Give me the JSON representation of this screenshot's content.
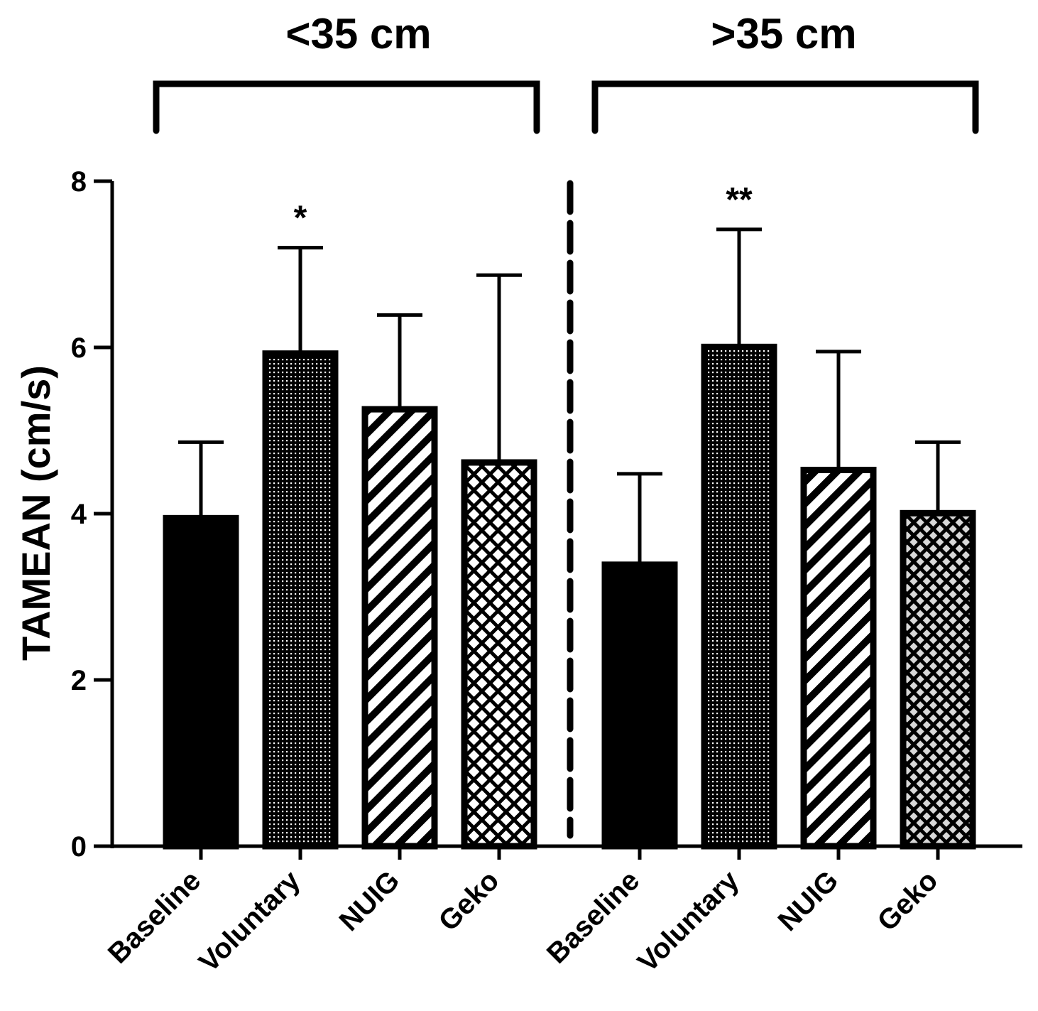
{
  "chart_data": {
    "type": "bar",
    "ylabel": "TAMEAN (cm/s)",
    "xlabel": "",
    "ylim": [
      0,
      8
    ],
    "yticks": [
      "0",
      "2",
      "4",
      "6",
      "8"
    ],
    "groups": [
      {
        "label": "<35 cm",
        "bars": [
          {
            "category": "Baseline",
            "value": 3.98,
            "error": 0.88,
            "pattern": "solid",
            "annotation": ""
          },
          {
            "category": "Voluntary",
            "value": 5.96,
            "error": 1.24,
            "pattern": "dots",
            "annotation": "*"
          },
          {
            "category": "NUIG",
            "value": 5.29,
            "error": 1.1,
            "pattern": "stripes",
            "annotation": ""
          },
          {
            "category": "Geko",
            "value": 4.65,
            "error": 2.22,
            "pattern": "checker",
            "annotation": ""
          }
        ]
      },
      {
        "label": ">35 cm",
        "bars": [
          {
            "category": "Baseline",
            "value": 3.42,
            "error": 1.06,
            "pattern": "solid",
            "annotation": ""
          },
          {
            "category": "Voluntary",
            "value": 6.04,
            "error": 1.38,
            "pattern": "dots",
            "annotation": "**"
          },
          {
            "category": "NUIG",
            "value": 4.56,
            "error": 1.39,
            "pattern": "stripes",
            "annotation": ""
          },
          {
            "category": "Geko",
            "value": 4.04,
            "error": 0.82,
            "pattern": "checker-gray",
            "annotation": ""
          }
        ]
      }
    ]
  },
  "colors": {
    "ink": "#000000",
    "background": "#ffffff",
    "gray_fill": "#cfcfcf"
  }
}
